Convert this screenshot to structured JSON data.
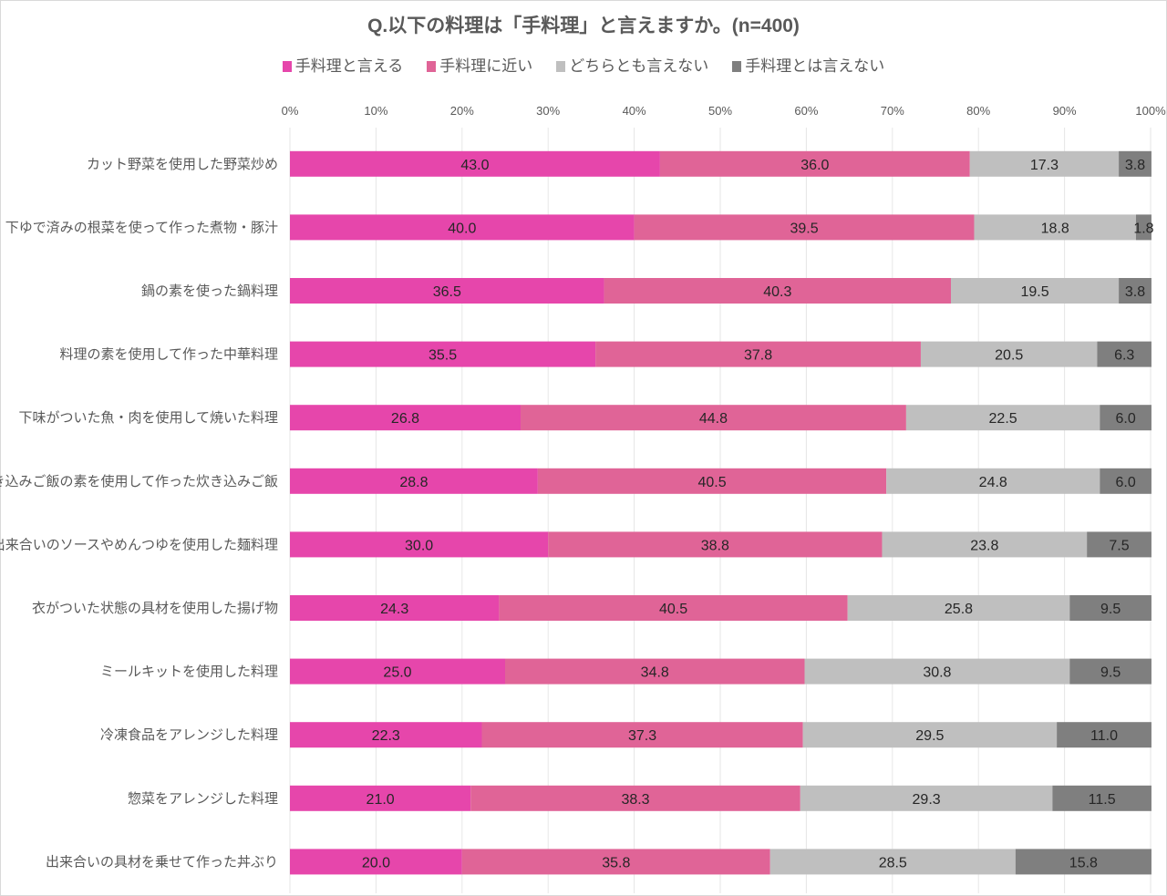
{
  "chart_data": {
    "type": "bar",
    "orientation": "horizontal",
    "stacked": true,
    "title": "Q.以下の料理は「手料理」と言えますか。(n=400)",
    "xlabel": "",
    "ylabel": "",
    "xlim": [
      0,
      100
    ],
    "x_ticks": [
      "0%",
      "10%",
      "20%",
      "30%",
      "40%",
      "50%",
      "60%",
      "70%",
      "80%",
      "90%",
      "100%"
    ],
    "grid": true,
    "legend_position": "top",
    "categories": [
      "カット野菜を使用した野菜炒め",
      "下ゆで済みの根菜を使って作った煮物・豚汁",
      "鍋の素を使った鍋料理",
      "料理の素を使用して作った中華料理",
      "下味がついた魚・肉を使用して焼いた料理",
      "炊き込みご飯の素を使用して作った炊き込みご飯",
      "出来合いのソースやめんつゆを使用した麺料理",
      "衣がついた状態の具材を使用した揚げ物",
      "ミールキットを使用した料理",
      "冷凍食品をアレンジした料理",
      "惣菜をアレンジした料理",
      "出来合いの具材を乗せて作った丼ぶり"
    ],
    "series": [
      {
        "name": "手料理と言える",
        "color": "#E646AB",
        "values": [
          43.0,
          40.0,
          36.5,
          35.5,
          26.8,
          28.8,
          30.0,
          24.3,
          25.0,
          22.3,
          21.0,
          20.0
        ]
      },
      {
        "name": "手料理に近い",
        "color": "#E06497",
        "values": [
          36.0,
          39.5,
          40.3,
          37.8,
          44.8,
          40.5,
          38.8,
          40.5,
          34.8,
          37.3,
          38.3,
          35.8
        ]
      },
      {
        "name": "どちらとも言えない",
        "color": "#BFBFBF",
        "values": [
          17.3,
          18.8,
          19.5,
          20.5,
          22.5,
          24.8,
          23.8,
          25.8,
          30.8,
          29.5,
          29.3,
          28.5
        ]
      },
      {
        "name": "手料理とは言えない",
        "color": "#7F7F7F",
        "values": [
          3.8,
          1.8,
          3.8,
          6.3,
          6.0,
          6.0,
          7.5,
          9.5,
          9.5,
          11.0,
          11.5,
          15.8
        ]
      }
    ]
  }
}
